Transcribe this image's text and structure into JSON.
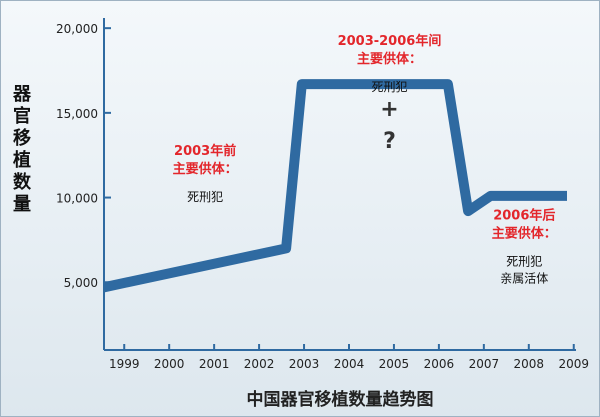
{
  "chart_data": {
    "type": "line",
    "title": "中国器官移植数量趋势图",
    "ylabel": "器官移植数量",
    "xlabel": "",
    "x_ticks": [
      "1999",
      "2000",
      "2001",
      "2002",
      "2003",
      "2004",
      "2005",
      "2006",
      "2007",
      "2008",
      "2009"
    ],
    "y_ticks": [
      "5,000",
      "10,000",
      "15,000",
      "20,000"
    ],
    "xlim": [
      1998.55,
      2009.05
    ],
    "ylim": [
      1000,
      20600
    ],
    "grid": false,
    "legend": "none",
    "series": [
      {
        "points": [
          {
            "x": 1998.55,
            "y": 4700
          },
          {
            "x": 2002.6,
            "y": 7000
          },
          {
            "x": 2002.95,
            "y": 16700
          },
          {
            "x": 2006.2,
            "y": 16700
          },
          {
            "x": 2006.65,
            "y": 9200
          },
          {
            "x": 2007.15,
            "y": 10100
          },
          {
            "x": 2008.85,
            "y": 10100
          }
        ]
      }
    ],
    "colors": {
      "line": "#2f6aa1",
      "axis": "#2f6aa1",
      "annotation": "#e3262b"
    },
    "annotations": [
      {
        "id": "pre2003",
        "x": 2000.8,
        "y": 12500,
        "red": [
          "2003年前",
          "主要供体："
        ],
        "black": [
          "死刑犯"
        ]
      },
      {
        "id": "mid",
        "x": 2004.9,
        "y": 19000,
        "red": [
          "2003-2006年间",
          "主要供体："
        ],
        "black": [
          "死刑犯"
        ],
        "symbols": [
          "+",
          "?"
        ]
      },
      {
        "id": "post2006",
        "x": 2007.9,
        "y": 8700,
        "red": [
          "2006年后",
          "主要供体："
        ],
        "black": [
          "死刑犯",
          "亲属活体"
        ]
      }
    ]
  }
}
